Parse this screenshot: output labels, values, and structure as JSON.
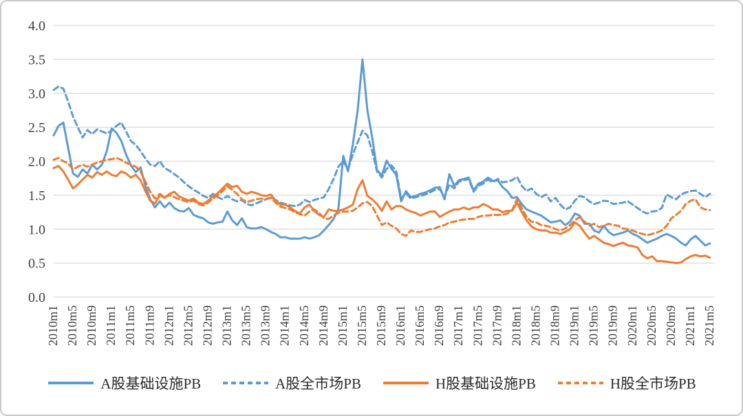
{
  "chart_data": {
    "type": "line",
    "title": "",
    "xlabel": "",
    "ylabel": "",
    "ylim": [
      0.0,
      4.0
    ],
    "y_tick_labels": [
      "0.0",
      "0.5",
      "1.0",
      "1.5",
      "2.0",
      "2.5",
      "3.0",
      "3.5",
      "4.0"
    ],
    "grid": true,
    "legend_position": "bottom",
    "x_months_start": "2010m1",
    "x_months_end": "2021m5",
    "x_tick_every_n_months": 4,
    "x_tick_labels": [
      "2010m1",
      "2010m5",
      "2010m9",
      "2011m1",
      "2011m5",
      "2011m9",
      "2012m1",
      "2012m5",
      "2012m9",
      "2013m1",
      "2013m5",
      "2013m9",
      "2014m1",
      "2014m5",
      "2014m9",
      "2015m1",
      "2015m5",
      "2015m9",
      "2016m1",
      "2016m5",
      "2016m9",
      "2017m1",
      "2017m5",
      "2017m9",
      "2018m1",
      "2018m5",
      "2018m9",
      "2019m1",
      "2019m5",
      "2019m9",
      "2020m1",
      "2020m5",
      "2020m9",
      "2021m1",
      "2021m5"
    ],
    "series": [
      {
        "name": "A股基础设施PB",
        "color": "#5B9BD5",
        "style": "solid",
        "values": [
          2.38,
          2.52,
          2.57,
          2.2,
          1.82,
          1.77,
          1.88,
          1.82,
          1.95,
          1.88,
          1.95,
          2.15,
          2.48,
          2.42,
          2.3,
          2.1,
          1.94,
          1.84,
          1.91,
          1.64,
          1.44,
          1.32,
          1.41,
          1.32,
          1.39,
          1.31,
          1.27,
          1.26,
          1.31,
          1.21,
          1.18,
          1.16,
          1.1,
          1.08,
          1.1,
          1.11,
          1.26,
          1.13,
          1.06,
          1.16,
          1.03,
          1.01,
          1.01,
          1.03,
          1.0,
          0.96,
          0.93,
          0.88,
          0.88,
          0.86,
          0.86,
          0.86,
          0.88,
          0.86,
          0.88,
          0.91,
          0.98,
          1.06,
          1.15,
          1.3,
          2.08,
          1.85,
          2.25,
          2.75,
          3.5,
          2.75,
          2.35,
          1.87,
          1.79,
          2.01,
          1.89,
          1.8,
          1.41,
          1.56,
          1.47,
          1.49,
          1.52,
          1.54,
          1.57,
          1.61,
          1.62,
          1.44,
          1.81,
          1.64,
          1.72,
          1.74,
          1.76,
          1.57,
          1.67,
          1.7,
          1.76,
          1.71,
          1.72,
          1.62,
          1.56,
          1.46,
          1.47,
          1.37,
          1.29,
          1.26,
          1.23,
          1.2,
          1.15,
          1.1,
          1.11,
          1.13,
          1.06,
          1.11,
          1.23,
          1.2,
          1.08,
          1.08,
          0.98,
          0.95,
          1.05,
          0.96,
          0.91,
          0.93,
          0.95,
          0.98,
          0.93,
          0.9,
          0.85,
          0.8,
          0.83,
          0.86,
          0.9,
          0.93,
          0.9,
          0.86,
          0.8,
          0.76,
          0.85,
          0.9,
          0.83,
          0.76,
          0.79
        ]
      },
      {
        "name": "A股全市场PB",
        "color": "#5B9BD5",
        "style": "dashed",
        "values": [
          3.05,
          3.1,
          3.07,
          2.88,
          2.66,
          2.5,
          2.35,
          2.46,
          2.4,
          2.47,
          2.44,
          2.41,
          2.45,
          2.52,
          2.57,
          2.44,
          2.3,
          2.24,
          2.15,
          2.04,
          1.95,
          1.93,
          2.0,
          1.9,
          1.86,
          1.81,
          1.76,
          1.69,
          1.63,
          1.58,
          1.54,
          1.49,
          1.46,
          1.52,
          1.47,
          1.44,
          1.49,
          1.44,
          1.41,
          1.43,
          1.37,
          1.35,
          1.38,
          1.41,
          1.44,
          1.47,
          1.43,
          1.39,
          1.37,
          1.35,
          1.34,
          1.36,
          1.43,
          1.4,
          1.43,
          1.45,
          1.47,
          1.59,
          1.74,
          1.92,
          2.0,
          1.88,
          2.1,
          2.28,
          2.45,
          2.38,
          2.15,
          1.85,
          1.76,
          1.89,
          1.94,
          1.85,
          1.45,
          1.53,
          1.45,
          1.47,
          1.49,
          1.51,
          1.54,
          1.58,
          1.59,
          1.47,
          1.66,
          1.6,
          1.7,
          1.72,
          1.74,
          1.55,
          1.64,
          1.67,
          1.73,
          1.69,
          1.74,
          1.69,
          1.7,
          1.72,
          1.77,
          1.64,
          1.56,
          1.6,
          1.52,
          1.47,
          1.51,
          1.41,
          1.46,
          1.36,
          1.29,
          1.32,
          1.42,
          1.49,
          1.47,
          1.41,
          1.37,
          1.39,
          1.42,
          1.41,
          1.37,
          1.38,
          1.39,
          1.41,
          1.36,
          1.31,
          1.26,
          1.23,
          1.26,
          1.27,
          1.31,
          1.51,
          1.47,
          1.44,
          1.51,
          1.54,
          1.56,
          1.57,
          1.52,
          1.47,
          1.52
        ]
      },
      {
        "name": "H股基础设施PB",
        "color": "#ED7D31",
        "style": "solid",
        "values": [
          1.9,
          1.93,
          1.85,
          1.73,
          1.6,
          1.66,
          1.73,
          1.8,
          1.76,
          1.84,
          1.8,
          1.85,
          1.8,
          1.78,
          1.85,
          1.82,
          1.76,
          1.8,
          1.72,
          1.56,
          1.42,
          1.38,
          1.5,
          1.46,
          1.52,
          1.55,
          1.48,
          1.45,
          1.42,
          1.45,
          1.39,
          1.37,
          1.42,
          1.48,
          1.53,
          1.6,
          1.67,
          1.62,
          1.64,
          1.55,
          1.52,
          1.55,
          1.53,
          1.5,
          1.49,
          1.51,
          1.42,
          1.36,
          1.36,
          1.32,
          1.27,
          1.23,
          1.32,
          1.36,
          1.27,
          1.21,
          1.18,
          1.29,
          1.27,
          1.27,
          1.29,
          1.32,
          1.36,
          1.59,
          1.72,
          1.49,
          1.44,
          1.37,
          1.27,
          1.41,
          1.29,
          1.34,
          1.34,
          1.29,
          1.26,
          1.24,
          1.2,
          1.23,
          1.26,
          1.26,
          1.18,
          1.22,
          1.26,
          1.29,
          1.29,
          1.32,
          1.29,
          1.32,
          1.32,
          1.37,
          1.34,
          1.29,
          1.29,
          1.25,
          1.27,
          1.27,
          1.39,
          1.25,
          1.13,
          1.04,
          1.0,
          0.98,
          0.98,
          0.95,
          0.95,
          0.93,
          0.96,
          1.0,
          1.1,
          1.05,
          0.95,
          0.86,
          0.9,
          0.85,
          0.8,
          0.78,
          0.75,
          0.78,
          0.8,
          0.76,
          0.75,
          0.73,
          0.62,
          0.57,
          0.6,
          0.53,
          0.53,
          0.52,
          0.51,
          0.5,
          0.51,
          0.56,
          0.6,
          0.62,
          0.6,
          0.61,
          0.58
        ]
      },
      {
        "name": "H股全市场PB",
        "color": "#ED7D31",
        "style": "dashed",
        "values": [
          2.02,
          2.05,
          2.0,
          1.97,
          1.88,
          1.92,
          1.95,
          1.92,
          1.95,
          1.98,
          2.0,
          2.02,
          2.03,
          2.05,
          2.02,
          1.98,
          1.95,
          1.92,
          1.85,
          1.7,
          1.55,
          1.45,
          1.52,
          1.47,
          1.5,
          1.47,
          1.44,
          1.42,
          1.4,
          1.42,
          1.37,
          1.35,
          1.39,
          1.45,
          1.5,
          1.56,
          1.63,
          1.58,
          1.52,
          1.44,
          1.4,
          1.42,
          1.44,
          1.45,
          1.44,
          1.46,
          1.39,
          1.33,
          1.31,
          1.29,
          1.25,
          1.22,
          1.2,
          1.26,
          1.29,
          1.24,
          1.16,
          1.15,
          1.2,
          1.24,
          1.26,
          1.26,
          1.27,
          1.32,
          1.38,
          1.4,
          1.34,
          1.2,
          1.06,
          1.1,
          1.05,
          1.01,
          0.93,
          0.9,
          0.98,
          0.96,
          0.96,
          0.98,
          1.0,
          1.01,
          1.04,
          1.06,
          1.1,
          1.11,
          1.13,
          1.14,
          1.15,
          1.15,
          1.18,
          1.2,
          1.2,
          1.21,
          1.21,
          1.21,
          1.23,
          1.28,
          1.44,
          1.31,
          1.18,
          1.11,
          1.1,
          1.06,
          1.05,
          1.03,
          1.0,
          0.98,
          1.01,
          1.06,
          1.13,
          1.18,
          1.11,
          1.05,
          1.08,
          1.03,
          1.05,
          1.08,
          1.06,
          1.05,
          1.01,
          1.0,
          0.98,
          0.95,
          0.93,
          0.91,
          0.93,
          0.95,
          0.98,
          1.05,
          1.16,
          1.21,
          1.27,
          1.37,
          1.42,
          1.44,
          1.32,
          1.29,
          1.28
        ]
      }
    ]
  },
  "colors": {
    "blue": "#5B9BD5",
    "orange": "#ED7D31",
    "gridline": "#D9D9D9",
    "tick_text": "#3f3f3f",
    "card_border": "#c9c9c9"
  }
}
